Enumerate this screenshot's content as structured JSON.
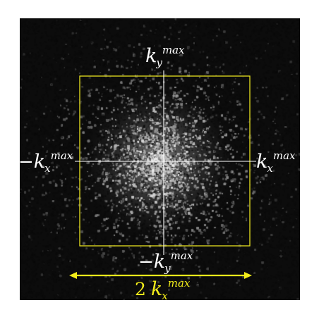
{
  "colors": {
    "background": "#0c0c0c",
    "box": "#e6e020",
    "axes": "#ffffff",
    "width_arrow": "#f2ec1a",
    "label": "#ffffff",
    "width_label": "#f2ec1a"
  },
  "labels": {
    "top": {
      "prefix": "",
      "var": "k",
      "sub": "y",
      "sup": "max"
    },
    "bottom": {
      "prefix": "−",
      "var": "k",
      "sub": "y",
      "sup": "max"
    },
    "left": {
      "prefix": "−",
      "var": "k",
      "sub": "x",
      "sup": "max"
    },
    "right": {
      "prefix": "",
      "var": "k",
      "sub": "x",
      "sup": "max"
    },
    "width": {
      "coef": "2",
      "var": "k",
      "sub": "x",
      "sup": "max"
    }
  }
}
